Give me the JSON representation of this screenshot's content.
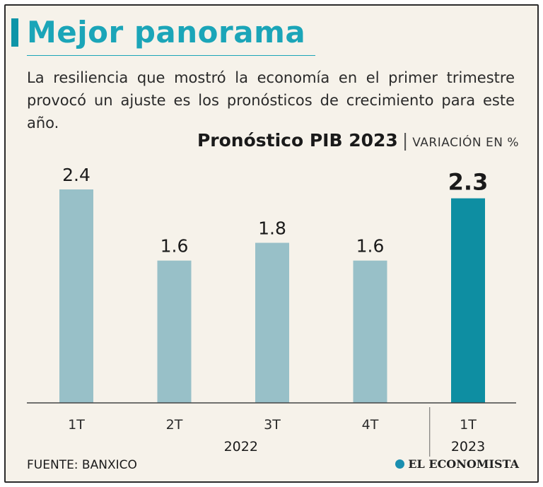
{
  "title": "Mejor panorama",
  "subtitle": "La resiliencia que mostró la economía en el primer trimestre provocó un ajuste es los pronósticos de crecimiento para este año.",
  "chart_data": {
    "type": "bar",
    "title": "Pronóstico PIB 2023",
    "unit": "VARIACIÓN EN %",
    "categories": [
      "1T",
      "2T",
      "3T",
      "4T",
      "1T"
    ],
    "values": [
      2.4,
      1.6,
      1.8,
      1.6,
      2.3
    ],
    "value_labels": [
      "2.4",
      "1.6",
      "1.8",
      "1.6",
      "2.3"
    ],
    "groups": [
      {
        "label": "2022",
        "start": 0,
        "end": 3
      },
      {
        "label": "2023",
        "start": 4,
        "end": 4
      }
    ],
    "highlight_index": 4,
    "ylim": [
      0,
      2.4
    ],
    "grid": false,
    "colors": {
      "bar": "#98c0c8",
      "highlight": "#0e8ea2",
      "axis": "#444444"
    }
  },
  "source": "FUENTE: BANXICO",
  "logo": {
    "text": "EL ECONOMISTA"
  }
}
